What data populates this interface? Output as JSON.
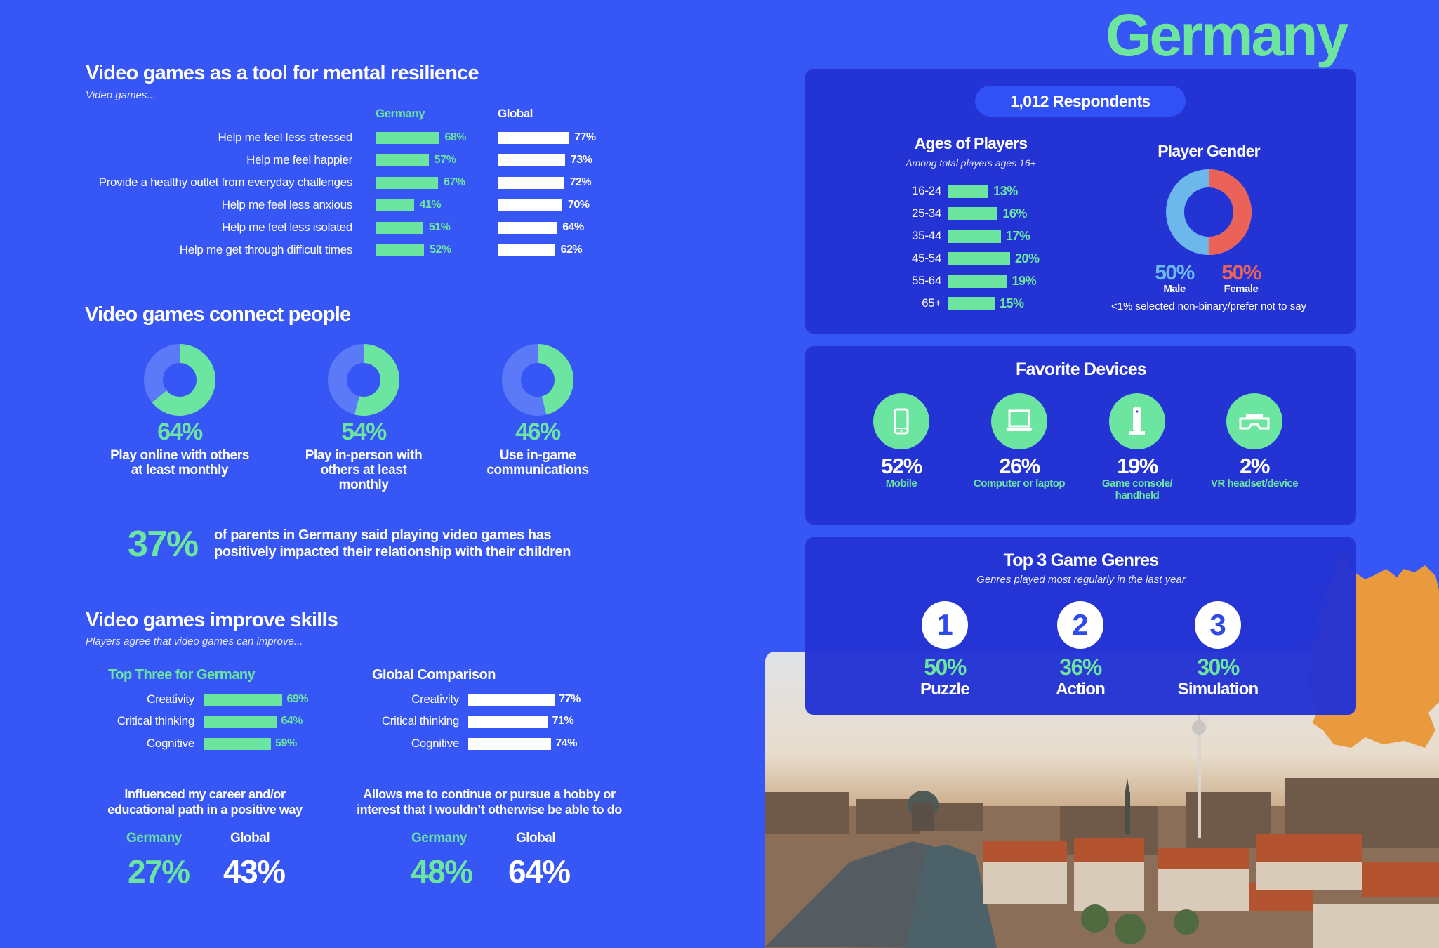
{
  "country_title": "Germany",
  "colors": {
    "background": "#3656f5",
    "panel": "#2433d4",
    "green": "#6ce5a0",
    "male": "#6cb8ea",
    "female": "#ea6258",
    "donut_rest": "#5b7af7",
    "map": "#e99a3c"
  },
  "resilience": {
    "title": "Video games as a tool for mental resilience",
    "subtitle": "Video games...",
    "col_germany": "Germany",
    "col_global": "Global",
    "rows": [
      {
        "label": "Help me feel less stressed",
        "germany": 68,
        "germany_label": "68%",
        "global": 77,
        "global_label": "77%"
      },
      {
        "label": "Help me feel happier",
        "germany": 57,
        "germany_label": "57%",
        "global": 73,
        "global_label": "73%"
      },
      {
        "label": "Provide a healthy outlet from everyday challenges",
        "germany": 67,
        "germany_label": "67%",
        "global": 72,
        "global_label": "72%"
      },
      {
        "label": "Help me feel less anxious",
        "germany": 41,
        "germany_label": "41%",
        "global": 70,
        "global_label": "70%"
      },
      {
        "label": "Help me feel less isolated",
        "germany": 51,
        "germany_label": "51%",
        "global": 64,
        "global_label": "64%"
      },
      {
        "label": "Help me get through difficult times",
        "germany": 52,
        "germany_label": "52%",
        "global": 62,
        "global_label": "62%"
      }
    ]
  },
  "connect": {
    "title": "Video games connect people",
    "donuts": [
      {
        "value": 64,
        "label_value": "64%",
        "line1": "Play online with others",
        "line2": "at least monthly",
        "line3": ""
      },
      {
        "value": 54,
        "label_value": "54%",
        "line1": "Play in-person with",
        "line2": "others at least",
        "line3": "monthly"
      },
      {
        "value": 46,
        "label_value": "46%",
        "line1": "Use in-game",
        "line2": "communications",
        "line3": ""
      }
    ],
    "parents_value": "37%",
    "parents_line1": "of parents in Germany said playing video games has",
    "parents_line2": "positively impacted their relationship with their children"
  },
  "skills": {
    "title": "Video games improve skills",
    "subtitle": "Players agree that video games can improve...",
    "germany_heading": "Top Three for Germany",
    "global_heading": "Global Comparison",
    "germany_rows": [
      {
        "label": "Creativity",
        "value": 69,
        "value_label": "69%"
      },
      {
        "label": "Critical thinking",
        "value": 64,
        "value_label": "64%"
      },
      {
        "label": "Cognitive",
        "value": 59,
        "value_label": "59%"
      }
    ],
    "global_rows": [
      {
        "label": "Creativity",
        "value": 77,
        "value_label": "77%"
      },
      {
        "label": "Critical thinking",
        "value": 71,
        "value_label": "71%"
      },
      {
        "label": "Cognitive",
        "value": 74,
        "value_label": "74%"
      }
    ],
    "career": {
      "line1": "Influenced my career and/or",
      "line2": "educational path in a positive way",
      "germany_label": "Germany",
      "global_label": "Global",
      "germany": "27%",
      "global": "43%"
    },
    "hobby": {
      "line1": "Allows me to continue or pursue a hobby or",
      "line2": "interest that I wouldn’t otherwise be able to do",
      "germany_label": "Germany",
      "global_label": "Global",
      "germany": "48%",
      "global": "64%"
    }
  },
  "respondents": "1,012 Respondents",
  "ages": {
    "title": "Ages of Players",
    "subtitle": "Among total players ages 16+",
    "rows": [
      {
        "label": "16-24",
        "value": 13,
        "value_label": "13%"
      },
      {
        "label": "25-34",
        "value": 16,
        "value_label": "16%"
      },
      {
        "label": "35-44",
        "value": 17,
        "value_label": "17%"
      },
      {
        "label": "45-54",
        "value": 20,
        "value_label": "20%"
      },
      {
        "label": "55-64",
        "value": 19,
        "value_label": "19%"
      },
      {
        "label": "65+",
        "value": 15,
        "value_label": "15%"
      }
    ]
  },
  "gender": {
    "title": "Player Gender",
    "male_value": 50,
    "male_pct": "50%",
    "male_label": "Male",
    "female_value": 50,
    "female_pct": "50%",
    "female_label": "Female",
    "note": "<1% selected non-binary/prefer not to say"
  },
  "devices": {
    "title": "Favorite Devices",
    "items": [
      {
        "icon": "mobile-phone-icon",
        "value": "52%",
        "line1": "Mobile",
        "line2": ""
      },
      {
        "icon": "laptop-icon",
        "value": "26%",
        "line1": "Computer or laptop",
        "line2": ""
      },
      {
        "icon": "game-console-icon",
        "value": "19%",
        "line1": "Game console/",
        "line2": "handheld"
      },
      {
        "icon": "vr-headset-icon",
        "value": "2%",
        "line1": "VR headset/device",
        "line2": ""
      }
    ]
  },
  "genres": {
    "title": "Top 3 Game Genres",
    "subtitle": "Genres played most regularly in the last year",
    "items": [
      {
        "rank": "1",
        "value": "50%",
        "name": "Puzzle"
      },
      {
        "rank": "2",
        "value": "36%",
        "name": "Action"
      },
      {
        "rank": "3",
        "value": "30%",
        "name": "Simulation"
      }
    ]
  }
}
